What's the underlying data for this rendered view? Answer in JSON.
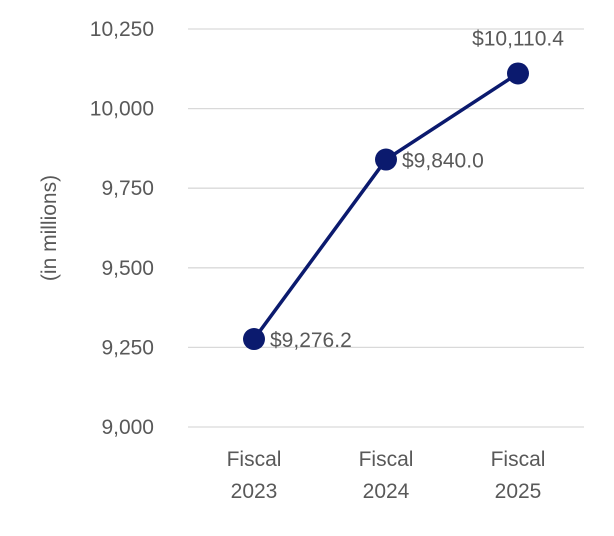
{
  "chart_data": {
    "type": "line",
    "title": "",
    "xlabel": "",
    "ylabel": "(in millions)",
    "categories": [
      [
        "Fiscal",
        "2023"
      ],
      [
        "Fiscal",
        "2024"
      ],
      [
        "Fiscal",
        "2025"
      ]
    ],
    "series": [
      {
        "values": [
          9276.2,
          9840.0,
          10110.4
        ],
        "labels": [
          "$9,276.2",
          "$9,840.0",
          "$10,110.4"
        ],
        "color": "#0b1a6e"
      }
    ],
    "ylim": [
      9000,
      10250
    ],
    "yticks": [
      9000,
      9250,
      9500,
      9750,
      10000,
      10250
    ],
    "ytick_labels": [
      "9,000",
      "9,250",
      "9,500",
      "9,750",
      "10,000",
      "10,250"
    ],
    "grid": true,
    "legend": "none"
  }
}
